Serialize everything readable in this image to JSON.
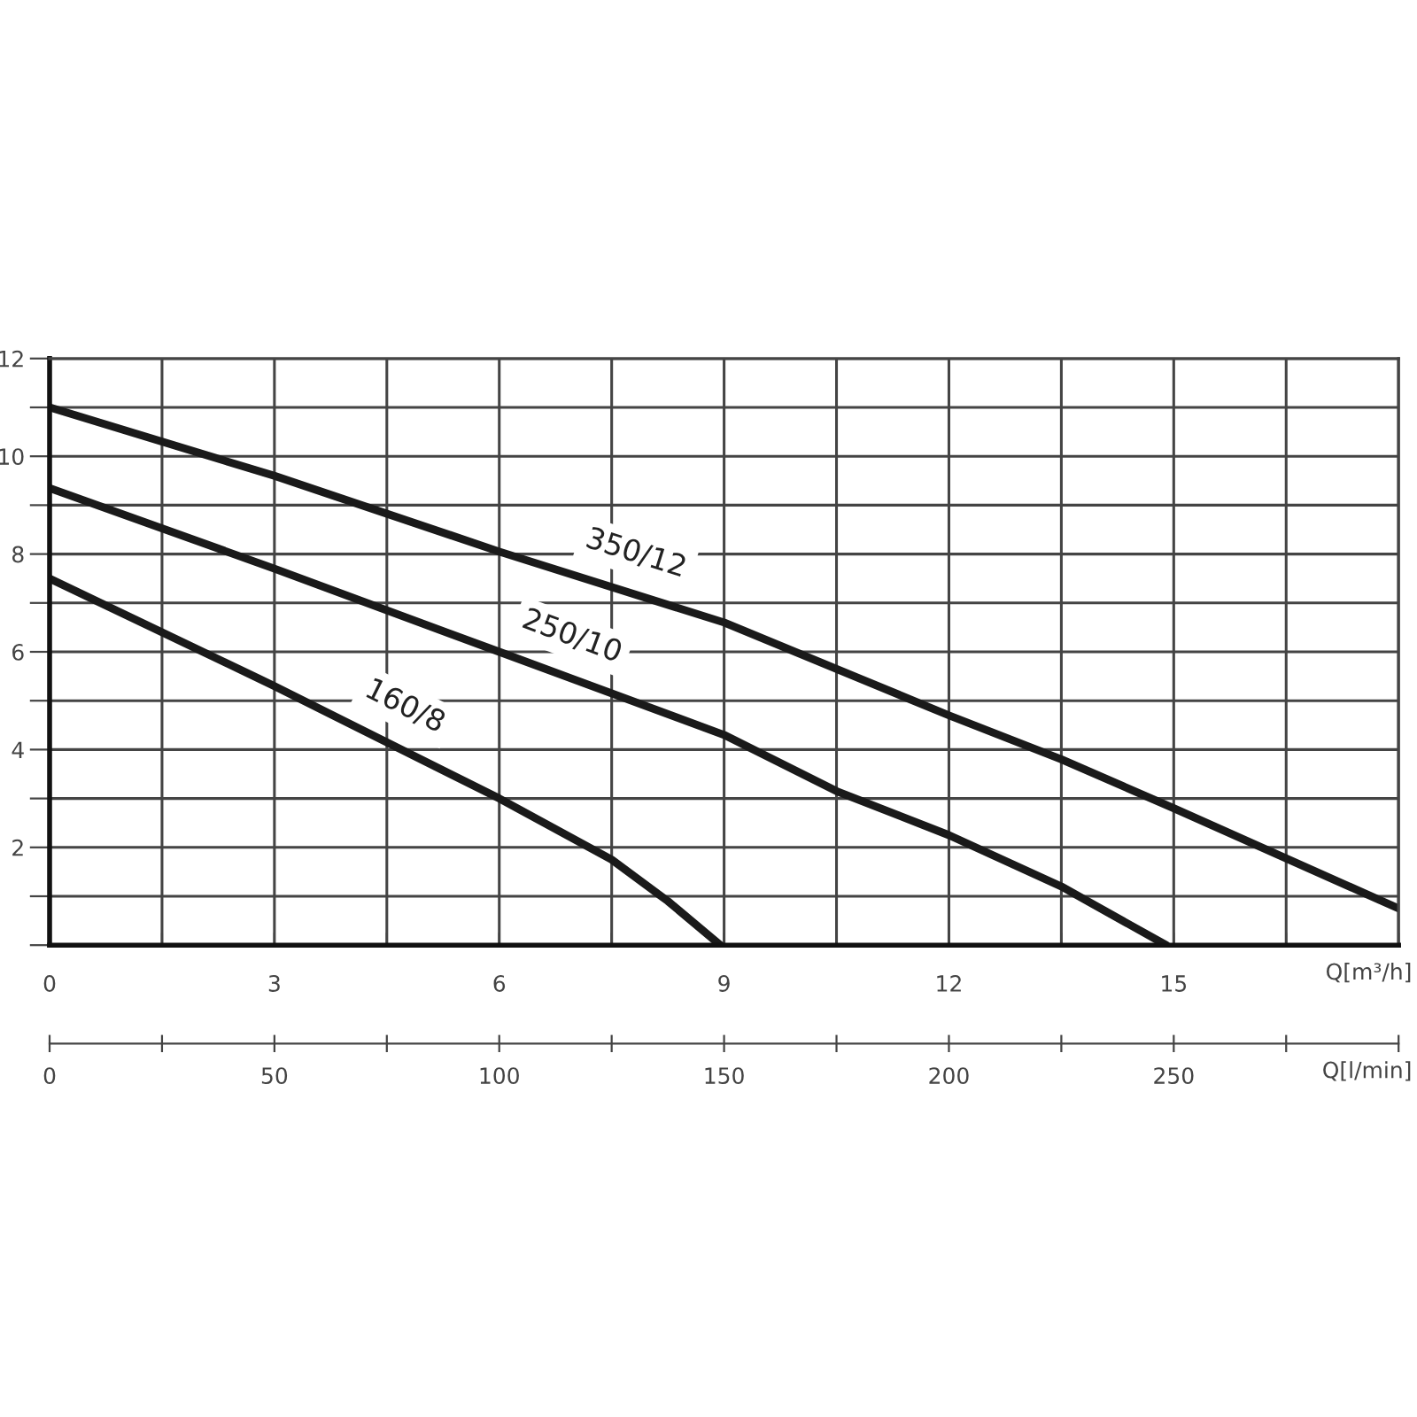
{
  "chart_data": {
    "type": "line",
    "xlabel": "Q[m³/h]",
    "x2label": "Q[l/min]",
    "xlim": [
      0,
      18
    ],
    "ylim": [
      0,
      12
    ],
    "x2lim": [
      0,
      300
    ],
    "xticks": [
      0,
      {
        "value": 1.5,
        "label": null
      },
      3,
      {
        "value": 4.5,
        "label": null
      },
      6,
      {
        "value": 7.5,
        "label": null
      },
      9,
      {
        "value": 10.5,
        "label": null
      },
      12,
      {
        "value": 13.5,
        "label": null
      },
      15,
      {
        "value": 16.5,
        "label": null
      },
      {
        "value": 18,
        "label": null
      }
    ],
    "yticks": [
      {
        "value": 0,
        "label": null
      },
      {
        "value": 1,
        "label": null
      },
      2,
      {
        "value": 3,
        "label": null
      },
      4,
      {
        "value": 5,
        "label": null
      },
      6,
      {
        "value": 7,
        "label": null
      },
      8,
      {
        "value": 9,
        "label": null
      },
      10,
      {
        "value": 11,
        "label": null
      },
      12
    ],
    "x2ticks": [
      0,
      {
        "value": 25,
        "label": null
      },
      50,
      {
        "value": 75,
        "label": null
      },
      100,
      {
        "value": 125,
        "label": null
      },
      150,
      {
        "value": 175,
        "label": null
      },
      200,
      {
        "value": 225,
        "label": null
      },
      250,
      {
        "value": 275,
        "label": null
      },
      {
        "value": 300,
        "label": null
      }
    ],
    "grid": true,
    "series": [
      {
        "name": "350/12",
        "color": "#1a1a1a",
        "x": [
          0,
          3,
          6,
          9,
          12,
          13.5,
          15,
          18
        ],
        "values": [
          11,
          9.6,
          8.05,
          6.6,
          4.7,
          3.8,
          2.8,
          0.75
        ]
      },
      {
        "name": "250/10",
        "color": "#1a1a1a",
        "x": [
          0,
          3,
          6,
          9,
          10.5,
          12,
          13.5,
          14.9
        ],
        "values": [
          9.35,
          7.7,
          6.0,
          4.3,
          3.15,
          2.25,
          1.2,
          0
        ]
      },
      {
        "name": "160/8",
        "color": "#1a1a1a",
        "x": [
          0,
          3,
          6,
          7.5,
          8.25,
          8.95
        ],
        "values": [
          7.5,
          5.3,
          3.0,
          1.75,
          0.9,
          0
        ]
      }
    ]
  }
}
